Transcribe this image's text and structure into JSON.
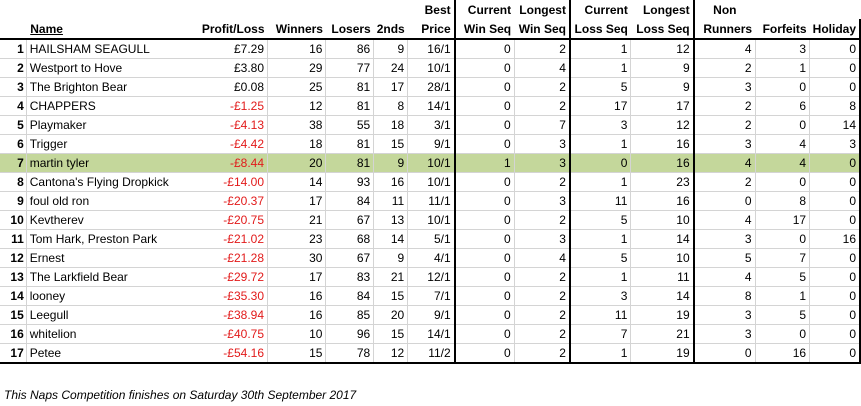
{
  "headers": {
    "name": "Name",
    "profit_loss": "Profit/Loss",
    "winners": "Winners",
    "losers": "Losers",
    "seconds": "2nds",
    "best_price": [
      "Best",
      "Price"
    ],
    "current_win_seq": [
      "Current",
      "Win Seq"
    ],
    "longest_win_seq": [
      "Longest",
      "Win Seq"
    ],
    "current_loss_seq": [
      "Current",
      "Loss Seq"
    ],
    "longest_loss_seq": [
      "Longest",
      "Loss Seq"
    ],
    "non_runners": [
      "Non",
      "Runners"
    ],
    "forfeits": "Forfeits",
    "holiday": "Holiday"
  },
  "highlight_row": 7,
  "rows": [
    {
      "rank": "1",
      "name": "HAILSHAM SEAGULL",
      "pl": "£7.29",
      "neg": false,
      "winners": "16",
      "losers": "86",
      "seconds": "9",
      "best": "16/1",
      "cws": "0",
      "lws": "2",
      "cls": "1",
      "lls": "12",
      "nr": "4",
      "forf": "3",
      "hol": "0"
    },
    {
      "rank": "2",
      "name": "Westport to Hove",
      "pl": "£3.80",
      "neg": false,
      "winners": "29",
      "losers": "77",
      "seconds": "24",
      "best": "10/1",
      "cws": "0",
      "lws": "4",
      "cls": "1",
      "lls": "9",
      "nr": "2",
      "forf": "1",
      "hol": "0"
    },
    {
      "rank": "3",
      "name": "The Brighton Bear",
      "pl": "£0.08",
      "neg": false,
      "winners": "25",
      "losers": "81",
      "seconds": "17",
      "best": "28/1",
      "cws": "0",
      "lws": "2",
      "cls": "5",
      "lls": "9",
      "nr": "3",
      "forf": "0",
      "hol": "0"
    },
    {
      "rank": "4",
      "name": "CHAPPERS",
      "pl": "-£1.25",
      "neg": true,
      "winners": "12",
      "losers": "81",
      "seconds": "8",
      "best": "14/1",
      "cws": "0",
      "lws": "2",
      "cls": "17",
      "lls": "17",
      "nr": "2",
      "forf": "6",
      "hol": "8"
    },
    {
      "rank": "5",
      "name": "Playmaker",
      "pl": "-£4.13",
      "neg": true,
      "winners": "38",
      "losers": "55",
      "seconds": "18",
      "best": "3/1",
      "cws": "0",
      "lws": "7",
      "cls": "3",
      "lls": "12",
      "nr": "2",
      "forf": "0",
      "hol": "14"
    },
    {
      "rank": "6",
      "name": "Trigger",
      "pl": "-£4.42",
      "neg": true,
      "winners": "18",
      "losers": "81",
      "seconds": "15",
      "best": "9/1",
      "cws": "0",
      "lws": "3",
      "cls": "1",
      "lls": "16",
      "nr": "3",
      "forf": "4",
      "hol": "3"
    },
    {
      "rank": "7",
      "name": "martin tyler",
      "pl": "-£8.44",
      "neg": true,
      "winners": "20",
      "losers": "81",
      "seconds": "9",
      "best": "10/1",
      "cws": "1",
      "lws": "3",
      "cls": "0",
      "lls": "16",
      "nr": "4",
      "forf": "4",
      "hol": "0"
    },
    {
      "rank": "8",
      "name": "Cantona's Flying Dropkick",
      "pl": "-£14.00",
      "neg": true,
      "winners": "14",
      "losers": "93",
      "seconds": "16",
      "best": "10/1",
      "cws": "0",
      "lws": "2",
      "cls": "1",
      "lls": "23",
      "nr": "2",
      "forf": "0",
      "hol": "0"
    },
    {
      "rank": "9",
      "name": "foul old ron",
      "pl": "-£20.37",
      "neg": true,
      "winners": "17",
      "losers": "84",
      "seconds": "11",
      "best": "11/1",
      "cws": "0",
      "lws": "3",
      "cls": "11",
      "lls": "16",
      "nr": "0",
      "forf": "8",
      "hol": "0"
    },
    {
      "rank": "10",
      "name": "Kevtherev",
      "pl": "-£20.75",
      "neg": true,
      "winners": "21",
      "losers": "67",
      "seconds": "13",
      "best": "10/1",
      "cws": "0",
      "lws": "2",
      "cls": "5",
      "lls": "10",
      "nr": "4",
      "forf": "17",
      "hol": "0"
    },
    {
      "rank": "11",
      "name": "Tom Hark, Preston Park",
      "pl": "-£21.02",
      "neg": true,
      "winners": "23",
      "losers": "68",
      "seconds": "14",
      "best": "5/1",
      "cws": "0",
      "lws": "3",
      "cls": "1",
      "lls": "14",
      "nr": "3",
      "forf": "0",
      "hol": "16"
    },
    {
      "rank": "12",
      "name": "Ernest",
      "pl": "-£21.28",
      "neg": true,
      "winners": "30",
      "losers": "67",
      "seconds": "9",
      "best": "4/1",
      "cws": "0",
      "lws": "4",
      "cls": "5",
      "lls": "10",
      "nr": "5",
      "forf": "7",
      "hol": "0"
    },
    {
      "rank": "13",
      "name": "The Larkfield Bear",
      "pl": "-£29.72",
      "neg": true,
      "winners": "17",
      "losers": "83",
      "seconds": "21",
      "best": "12/1",
      "cws": "0",
      "lws": "2",
      "cls": "1",
      "lls": "11",
      "nr": "4",
      "forf": "5",
      "hol": "0"
    },
    {
      "rank": "14",
      "name": "looney",
      "pl": "-£35.30",
      "neg": true,
      "winners": "16",
      "losers": "84",
      "seconds": "15",
      "best": "7/1",
      "cws": "0",
      "lws": "2",
      "cls": "3",
      "lls": "14",
      "nr": "8",
      "forf": "1",
      "hol": "0"
    },
    {
      "rank": "15",
      "name": "Leegull",
      "pl": "-£38.94",
      "neg": true,
      "winners": "16",
      "losers": "85",
      "seconds": "20",
      "best": "9/1",
      "cws": "0",
      "lws": "2",
      "cls": "11",
      "lls": "19",
      "nr": "3",
      "forf": "5",
      "hol": "0"
    },
    {
      "rank": "16",
      "name": "whitelion",
      "pl": "-£40.75",
      "neg": true,
      "winners": "10",
      "losers": "96",
      "seconds": "15",
      "best": "14/1",
      "cws": "0",
      "lws": "2",
      "cls": "7",
      "lls": "21",
      "nr": "3",
      "forf": "0",
      "hol": "0"
    },
    {
      "rank": "17",
      "name": "Petee",
      "pl": "-£54.16",
      "neg": true,
      "winners": "15",
      "losers": "78",
      "seconds": "12",
      "best": "11/2",
      "cws": "0",
      "lws": "2",
      "cls": "1",
      "lls": "19",
      "nr": "0",
      "forf": "16",
      "hol": "0"
    }
  ],
  "footer": "This Naps Competition finishes on Saturday 30th September 2017",
  "colors": {
    "highlight": "#c4d79b",
    "negative": "#e21a1a"
  }
}
